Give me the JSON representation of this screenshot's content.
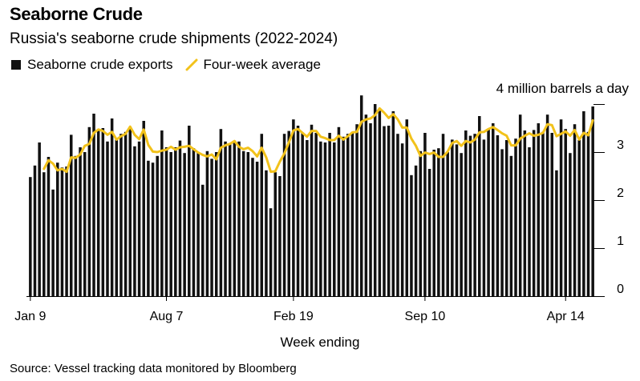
{
  "header": {
    "title": "Seaborne Crude",
    "subtitle": "Russia's seaborne crude shipments (2022-2024)"
  },
  "legend": {
    "bars_label": "Seaborne crude exports",
    "line_label": "Four-week average"
  },
  "colors": {
    "bar": "#111111",
    "line": "#f2c21b",
    "axis": "#000000"
  },
  "footer": {
    "source": "Source: Vessel tracking data monitored by Bloomberg"
  },
  "chart_data": {
    "type": "bar",
    "title": "Seaborne Crude",
    "subtitle": "Russia's seaborne crude shipments (2022-2024)",
    "xlabel": "Week ending",
    "ylabel": "million barrels a day",
    "unit_label": "4 million barrels a day",
    "ylim": [
      0,
      4
    ],
    "yticks": [
      "0",
      "1",
      "2",
      "3",
      "4"
    ],
    "x_tick_labels": [
      {
        "label": "Jan 9",
        "index": 0
      },
      {
        "label": "Aug 7",
        "index": 30
      },
      {
        "label": "Feb 19",
        "index": 58
      },
      {
        "label": "Sep 10",
        "index": 87
      },
      {
        "label": "Apr 14",
        "index": 118
      }
    ],
    "series": [
      {
        "name": "Seaborne crude exports",
        "kind": "bar",
        "values": [
          2.48,
          2.72,
          3.2,
          2.58,
          2.9,
          2.22,
          2.78,
          2.68,
          2.7,
          3.36,
          2.92,
          3.1,
          3.0,
          3.52,
          3.8,
          3.46,
          3.5,
          3.22,
          3.7,
          3.26,
          3.38,
          3.42,
          3.52,
          3.12,
          3.22,
          3.65,
          2.82,
          2.78,
          2.92,
          3.45,
          3.1,
          3.0,
          3.1,
          3.24,
          2.98,
          3.55,
          3.08,
          2.98,
          2.32,
          3.02,
          2.86,
          3.0,
          3.48,
          3.22,
          3.18,
          3.24,
          3.22,
          3.02,
          3.0,
          2.88,
          2.8,
          3.38,
          2.62,
          1.83,
          2.58,
          2.5,
          3.38,
          3.44,
          3.68,
          3.55,
          3.4,
          3.25,
          3.57,
          3.4,
          3.22,
          3.2,
          3.4,
          3.2,
          3.52,
          3.32,
          3.38,
          3.4,
          3.58,
          4.18,
          3.78,
          3.6,
          4.0,
          3.86,
          3.54,
          3.55,
          3.85,
          3.38,
          3.18,
          3.68,
          2.52,
          2.72,
          3.02,
          3.4,
          2.65,
          3.05,
          3.08,
          3.38,
          3.0,
          3.26,
          3.16,
          2.98,
          3.45,
          3.34,
          3.38,
          3.75,
          3.26,
          3.48,
          3.6,
          3.35,
          3.06,
          3.25,
          2.92,
          3.28,
          3.78,
          3.45,
          3.1,
          3.46,
          3.6,
          3.42,
          3.78,
          3.4,
          2.62,
          3.68,
          3.48,
          2.98,
          3.58,
          3.25,
          3.85,
          3.42,
          3.95
        ]
      },
      {
        "name": "Four-week average",
        "kind": "line",
        "values": [
          null,
          null,
          null,
          2.65,
          2.83,
          2.76,
          2.62,
          2.65,
          2.59,
          2.89,
          2.88,
          2.95,
          3.13,
          3.17,
          3.4,
          3.47,
          3.44,
          3.36,
          3.42,
          3.26,
          3.33,
          3.38,
          3.53,
          3.36,
          3.27,
          3.47,
          3.15,
          3.01,
          3.0,
          3.03,
          3.05,
          3.11,
          3.05,
          3.1,
          3.11,
          3.13,
          3.06,
          2.99,
          2.94,
          2.91,
          2.95,
          2.85,
          3.09,
          3.14,
          3.17,
          3.23,
          3.11,
          3.06,
          3.09,
          3.02,
          2.91,
          3.09,
          2.89,
          2.59,
          2.6,
          2.8,
          2.97,
          3.2,
          3.45,
          3.48,
          3.4,
          3.32,
          3.44,
          3.44,
          3.32,
          3.29,
          3.25,
          3.25,
          3.34,
          3.26,
          3.33,
          3.41,
          3.42,
          3.63,
          3.68,
          3.7,
          3.77,
          3.91,
          3.82,
          3.71,
          3.79,
          3.68,
          3.51,
          3.51,
          3.28,
          3.13,
          2.92,
          2.99,
          2.96,
          2.99,
          2.9,
          2.9,
          3.01,
          3.19,
          3.23,
          3.13,
          3.23,
          3.2,
          3.26,
          3.41,
          3.42,
          3.48,
          3.52,
          3.46,
          3.39,
          3.34,
          3.14,
          3.14,
          3.28,
          3.34,
          3.39,
          3.34,
          3.36,
          3.4,
          3.58,
          3.56,
          3.33,
          3.38,
          3.43,
          3.34,
          3.46,
          3.26,
          3.4,
          3.35,
          3.66
        ]
      }
    ]
  }
}
